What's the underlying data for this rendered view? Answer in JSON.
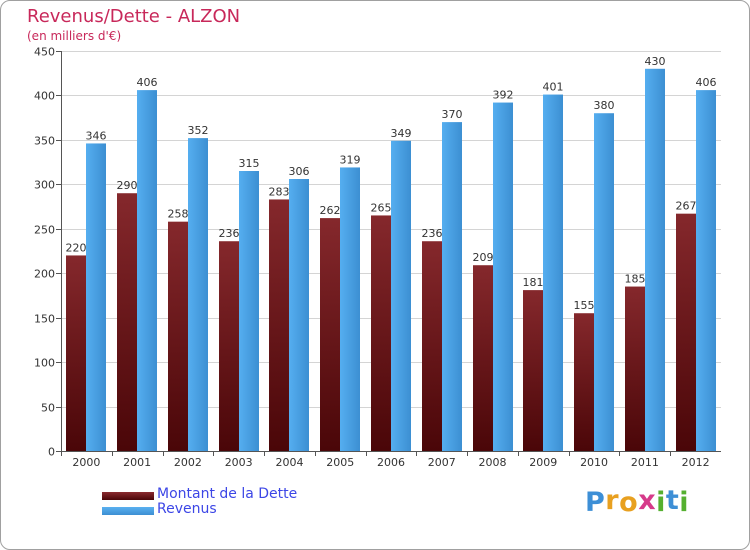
{
  "chart_data": {
    "type": "bar",
    "title": "Revenus/Dette - ALZON",
    "subtitle": "(en milliers d'€)",
    "categories": [
      "2000",
      "2001",
      "2002",
      "2003",
      "2004",
      "2005",
      "2006",
      "2007",
      "2008",
      "2009",
      "2010",
      "2011",
      "2012"
    ],
    "series": [
      {
        "name": "Montant de la Dette",
        "color": "#7a1a1e",
        "values": [
          220,
          290,
          258,
          236,
          283,
          262,
          265,
          236,
          209,
          181,
          155,
          185,
          267
        ]
      },
      {
        "name": "Revenus",
        "color": "#4aa3e8",
        "values": [
          346,
          406,
          352,
          315,
          306,
          319,
          349,
          370,
          392,
          401,
          380,
          430,
          406
        ]
      }
    ],
    "ylim": [
      0,
      450
    ],
    "yticks": [
      0,
      50,
      100,
      150,
      200,
      250,
      300,
      350,
      400,
      450
    ],
    "xlabel": "",
    "ylabel": "",
    "grid": true,
    "legend_position": "bottom-left"
  },
  "logo": {
    "text": "Proxiti",
    "letters": [
      "P",
      "r",
      "o",
      "x",
      "i",
      "t",
      "i"
    ],
    "colors": [
      "#3d8fd6",
      "#e8a020",
      "#e8a020",
      "#d63a8a",
      "#55b030",
      "#3d8fd6",
      "#55b030"
    ]
  }
}
